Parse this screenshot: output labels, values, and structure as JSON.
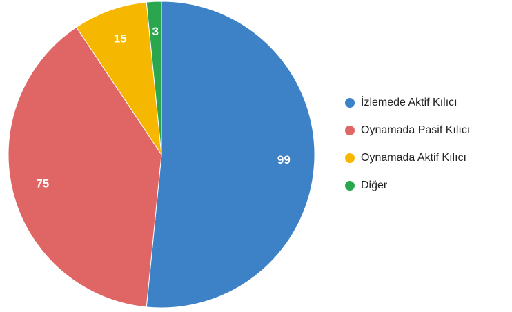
{
  "chart_data": {
    "type": "pie",
    "categories": [
      "İzlemede Aktif Kılıcı",
      "Oynamada Pasif Kılıcı",
      "Oynamada Aktif Kılıcı",
      "Diğer"
    ],
    "values": [
      99,
      75,
      15,
      3
    ],
    "colors": [
      "#3d82c6",
      "#e06666",
      "#f6b700",
      "#2aa64f"
    ]
  }
}
